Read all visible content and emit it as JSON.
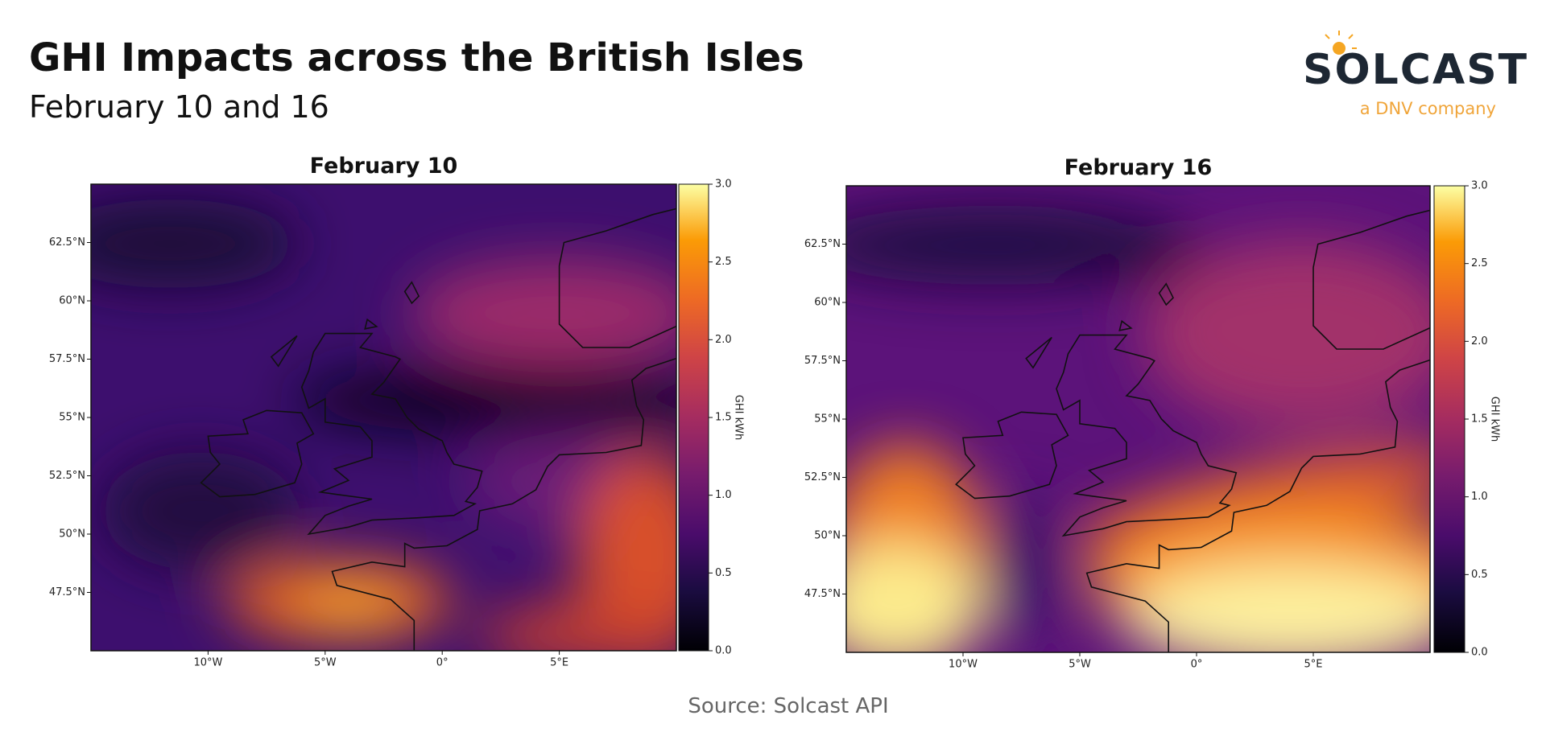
{
  "header": {
    "title": "GHI Impacts across the British Isles",
    "subtitle": "February 10 and 16"
  },
  "logo": {
    "name": "SOLCAST",
    "tagline": "a DNV company"
  },
  "maps": [
    {
      "title": "February 10",
      "xlim": [
        -15,
        10
      ],
      "ylim": [
        45,
        65
      ],
      "xticks": [
        {
          "value": -10,
          "label": "10°W"
        },
        {
          "value": -5,
          "label": "5°W"
        },
        {
          "value": 0,
          "label": "0°"
        },
        {
          "value": 5,
          "label": "5°E"
        }
      ],
      "yticks": [
        {
          "value": 47.5,
          "label": "47.5°N"
        },
        {
          "value": 50,
          "label": "50°N"
        },
        {
          "value": 52.5,
          "label": "52.5°N"
        },
        {
          "value": 55,
          "label": "55°N"
        },
        {
          "value": 57.5,
          "label": "57.5°N"
        },
        {
          "value": 60,
          "label": "60°N"
        },
        {
          "value": 62.5,
          "label": "62.5°N"
        }
      ],
      "colorbar": {
        "label": "GHI kWh",
        "lim": [
          0,
          3
        ],
        "ticks": [
          {
            "value": 0,
            "label": "0.0"
          },
          {
            "value": 0.5,
            "label": "0.5"
          },
          {
            "value": 1,
            "label": "1.0"
          },
          {
            "value": 1.5,
            "label": "1.5"
          },
          {
            "value": 2,
            "label": "2.0"
          },
          {
            "value": 2.5,
            "label": "2.5"
          },
          {
            "value": 3,
            "label": "3.0"
          }
        ]
      }
    },
    {
      "title": "February 16",
      "xlim": [
        -15,
        10
      ],
      "ylim": [
        45,
        65
      ],
      "xticks": [
        {
          "value": -10,
          "label": "10°W"
        },
        {
          "value": -5,
          "label": "5°W"
        },
        {
          "value": 0,
          "label": "0°"
        },
        {
          "value": 5,
          "label": "5°E"
        }
      ],
      "yticks": [
        {
          "value": 47.5,
          "label": "47.5°N"
        },
        {
          "value": 50,
          "label": "50°N"
        },
        {
          "value": 52.5,
          "label": "52.5°N"
        },
        {
          "value": 55,
          "label": "55°N"
        },
        {
          "value": 57.5,
          "label": "57.5°N"
        },
        {
          "value": 60,
          "label": "60°N"
        },
        {
          "value": 62.5,
          "label": "62.5°N"
        }
      ],
      "colorbar": {
        "label": "GHI kWh",
        "lim": [
          0,
          3
        ],
        "ticks": [
          {
            "value": 0,
            "label": "0.0"
          },
          {
            "value": 0.5,
            "label": "0.5"
          },
          {
            "value": 1,
            "label": "1.0"
          },
          {
            "value": 1.5,
            "label": "1.5"
          },
          {
            "value": 2,
            "label": "2.0"
          },
          {
            "value": 2.5,
            "label": "2.5"
          },
          {
            "value": 3,
            "label": "3.0"
          }
        ]
      }
    }
  ],
  "source": "Source: Solcast API"
}
